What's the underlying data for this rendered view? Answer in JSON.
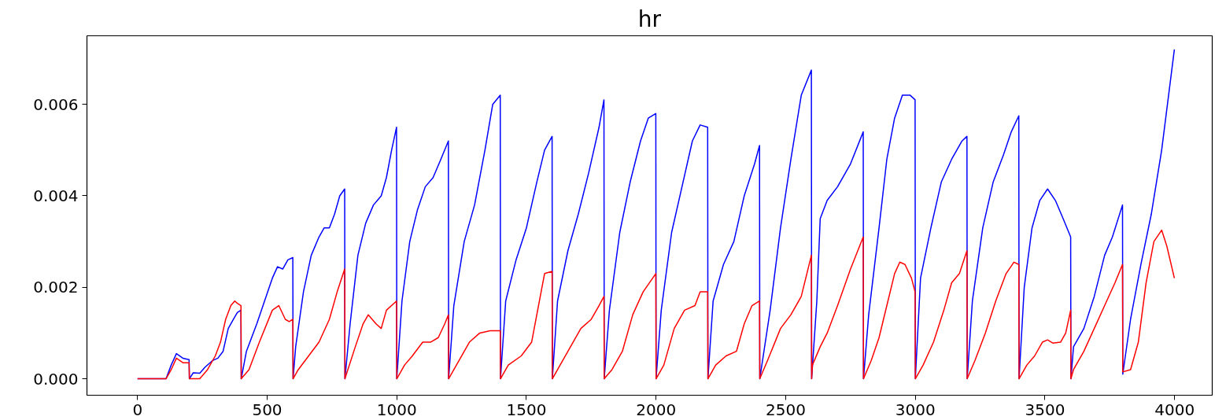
{
  "chart_data": {
    "type": "line",
    "title": "hr",
    "xlim": [
      -195,
      4145
    ],
    "ylim": [
      -0.00036,
      0.0075
    ],
    "xticks": [
      0,
      500,
      1000,
      1500,
      2000,
      2500,
      3000,
      3500,
      4000
    ],
    "yticks": [
      {
        "value": 0,
        "label": "0.000"
      },
      {
        "value": 0.002,
        "label": "0.002"
      },
      {
        "value": 0.004,
        "label": "0.004"
      },
      {
        "value": 0.006,
        "label": "0.006"
      }
    ],
    "grid": false,
    "series": [
      {
        "color": "#0000ff",
        "x": [
          0,
          50,
          110,
          130,
          150,
          175,
          199,
          200,
          215,
          240,
          260,
          290,
          310,
          330,
          350,
          370,
          385,
          399,
          400,
          420,
          460,
          490,
          520,
          540,
          560,
          580,
          599,
          600,
          610,
          640,
          670,
          700,
          720,
          740,
          760,
          780,
          799,
          800,
          820,
          850,
          880,
          910,
          940,
          960,
          980,
          999,
          1000,
          1020,
          1050,
          1080,
          1110,
          1140,
          1170,
          1199,
          1200,
          1220,
          1260,
          1300,
          1340,
          1370,
          1399,
          1400,
          1420,
          1460,
          1500,
          1540,
          1570,
          1599,
          1600,
          1620,
          1660,
          1700,
          1740,
          1780,
          1799,
          1800,
          1820,
          1860,
          1900,
          1940,
          1970,
          1999,
          2000,
          2020,
          2060,
          2100,
          2140,
          2170,
          2199,
          2200,
          2220,
          2260,
          2300,
          2340,
          2380,
          2399,
          2400,
          2440,
          2480,
          2520,
          2560,
          2599,
          2600,
          2620,
          2633,
          2660,
          2700,
          2750,
          2799,
          2800,
          2820,
          2860,
          2890,
          2920,
          2950,
          2980,
          2999,
          3000,
          3020,
          3060,
          3100,
          3140,
          3180,
          3199,
          3200,
          3220,
          3260,
          3300,
          3340,
          3370,
          3399,
          3400,
          3420,
          3450,
          3480,
          3510,
          3540,
          3570,
          3599,
          3600,
          3610,
          3650,
          3690,
          3730,
          3760,
          3799,
          3800,
          3830,
          3870,
          3910,
          3950,
          3999
        ],
        "values": [
          0,
          0,
          0,
          0.0003,
          0.00055,
          0.00045,
          0.00042,
          0,
          0.00013,
          0.00012,
          0.00025,
          0.0004,
          0.00045,
          0.0006,
          0.0011,
          0.0013,
          0.00145,
          0.0015,
          0,
          0.0006,
          0.0012,
          0.0017,
          0.0022,
          0.00245,
          0.0024,
          0.0026,
          0.00265,
          0,
          0.0007,
          0.0019,
          0.0027,
          0.0031,
          0.0033,
          0.0033,
          0.0036,
          0.004,
          0.00415,
          0,
          0.0012,
          0.0027,
          0.0034,
          0.0038,
          0.004,
          0.0044,
          0.005,
          0.0055,
          0,
          0.0017,
          0.003,
          0.0037,
          0.0042,
          0.0044,
          0.0048,
          0.0052,
          0,
          0.0016,
          0.003,
          0.0038,
          0.005,
          0.006,
          0.0062,
          0,
          0.0017,
          0.0026,
          0.0033,
          0.0043,
          0.005,
          0.0053,
          0,
          0.0017,
          0.0028,
          0.0036,
          0.0045,
          0.0055,
          0.0061,
          0,
          0.0015,
          0.0032,
          0.0043,
          0.0052,
          0.0057,
          0.0058,
          0,
          0.0015,
          0.0032,
          0.0042,
          0.0052,
          0.00555,
          0.0055,
          0,
          0.0017,
          0.0025,
          0.003,
          0.004,
          0.0047,
          0.0051,
          0,
          0.0015,
          0.0033,
          0.0048,
          0.0062,
          0.00675,
          0,
          0.0017,
          0.0035,
          0.0039,
          0.0042,
          0.0047,
          0.0054,
          0,
          0.0014,
          0.0033,
          0.0048,
          0.0057,
          0.0062,
          0.0062,
          0.0061,
          0,
          0.0022,
          0.0033,
          0.0043,
          0.0048,
          0.0052,
          0.0053,
          0,
          0.0017,
          0.0033,
          0.0043,
          0.0049,
          0.0054,
          0.00575,
          0,
          0.002,
          0.0033,
          0.0039,
          0.00415,
          0.0039,
          0.0035,
          0.0031,
          0,
          0.0007,
          0.0011,
          0.0018,
          0.0027,
          0.0031,
          0.0038,
          0.0001,
          0.0013,
          0.0025,
          0.0036,
          0.005,
          0.0072
        ]
      },
      {
        "color": "#ff0000",
        "x": [
          0,
          50,
          110,
          130,
          150,
          175,
          199,
          200,
          240,
          270,
          300,
          320,
          340,
          360,
          375,
          385,
          399,
          400,
          430,
          470,
          520,
          545,
          570,
          585,
          599,
          600,
          620,
          660,
          700,
          740,
          770,
          799,
          800,
          840,
          870,
          890,
          920,
          940,
          960,
          999,
          1000,
          1030,
          1060,
          1100,
          1130,
          1160,
          1185,
          1199,
          1200,
          1240,
          1280,
          1320,
          1360,
          1399,
          1400,
          1430,
          1480,
          1520,
          1550,
          1570,
          1599,
          1600,
          1630,
          1670,
          1710,
          1750,
          1780,
          1799,
          1800,
          1830,
          1870,
          1910,
          1950,
          1999,
          2000,
          2030,
          2070,
          2110,
          2150,
          2170,
          2199,
          2200,
          2230,
          2270,
          2310,
          2340,
          2370,
          2399,
          2400,
          2430,
          2480,
          2520,
          2560,
          2599,
          2600,
          2603,
          2633,
          2660,
          2700,
          2750,
          2799,
          2800,
          2830,
          2860,
          2890,
          2920,
          2940,
          2960,
          2985,
          2999,
          3000,
          3030,
          3070,
          3110,
          3140,
          3170,
          3199,
          3200,
          3230,
          3270,
          3310,
          3350,
          3380,
          3399,
          3400,
          3430,
          3460,
          3490,
          3510,
          3530,
          3560,
          3580,
          3599,
          3600,
          3610,
          3650,
          3690,
          3730,
          3770,
          3799,
          3800,
          3830,
          3860,
          3890,
          3920,
          3950,
          3970,
          3999
        ],
        "values": [
          0,
          0,
          0,
          0.0002,
          0.00045,
          0.00035,
          0.00035,
          0,
          0,
          0.0002,
          0.0005,
          0.0008,
          0.0013,
          0.0016,
          0.0017,
          0.00165,
          0.0016,
          0,
          0.0002,
          0.0008,
          0.0015,
          0.0016,
          0.0013,
          0.00125,
          0.0013,
          0,
          0.0002,
          0.0005,
          0.0008,
          0.0013,
          0.0019,
          0.0024,
          0,
          0.0007,
          0.0012,
          0.0014,
          0.0012,
          0.0011,
          0.0015,
          0.0017,
          0,
          0.0003,
          0.0005,
          0.0008,
          0.0008,
          0.0009,
          0.0012,
          0.0014,
          0,
          0.0004,
          0.0008,
          0.001,
          0.00105,
          0.00105,
          0,
          0.0003,
          0.0005,
          0.0008,
          0.0017,
          0.0023,
          0.00235,
          0,
          0.0003,
          0.0007,
          0.0011,
          0.0013,
          0.0016,
          0.0018,
          0,
          0.0002,
          0.0006,
          0.0014,
          0.0019,
          0.0023,
          0,
          0.0003,
          0.0011,
          0.0015,
          0.0016,
          0.0019,
          0.0019,
          0,
          0.0003,
          0.0005,
          0.0006,
          0.0012,
          0.0016,
          0.0017,
          0,
          0.0004,
          0.0011,
          0.0014,
          0.0018,
          0.0027,
          0,
          0.0003,
          0.0007,
          0.001,
          0.0016,
          0.0024,
          0.0031,
          0,
          0.0004,
          0.0009,
          0.0016,
          0.0023,
          0.00255,
          0.0025,
          0.0022,
          0.0019,
          0,
          0.0003,
          0.0008,
          0.0015,
          0.0021,
          0.0023,
          0.0028,
          0,
          0.0004,
          0.001,
          0.0017,
          0.0023,
          0.00255,
          0.0025,
          0,
          0.0003,
          0.0005,
          0.0008,
          0.00085,
          0.00078,
          0.0008,
          0.001,
          0.0015,
          0,
          0.0002,
          0.0006,
          0.0011,
          0.0016,
          0.0021,
          0.0025,
          0.00015,
          0.0002,
          0.0008,
          0.0021,
          0.003,
          0.00325,
          0.0029,
          0.0022
        ]
      }
    ]
  }
}
